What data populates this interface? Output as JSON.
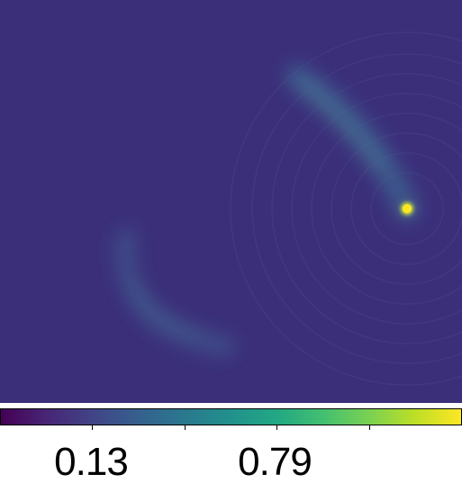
{
  "image": {
    "colormap": "viridis",
    "background_color": "#3b2f7a",
    "point_source_color": "#fde725",
    "emission_color": "#3f6a93"
  },
  "colorbar": {
    "colormap": "viridis",
    "tick_labels": [
      "0.13",
      "0.79"
    ]
  }
}
